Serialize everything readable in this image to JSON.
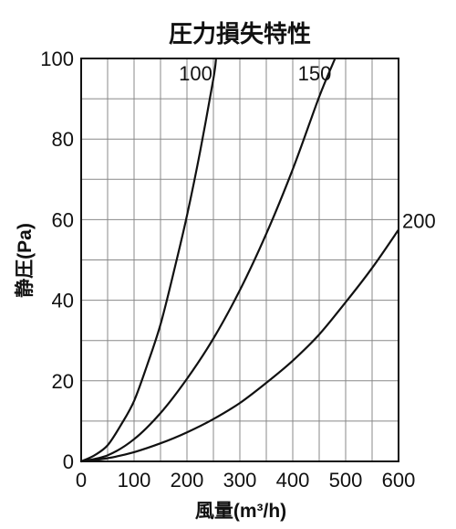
{
  "chart_data": {
    "type": "line",
    "title": "圧力損失特性",
    "xlabel": "風量(m³/h)",
    "ylabel": "静圧(Pa)",
    "xlim": [
      0,
      600
    ],
    "ylim": [
      0,
      100
    ],
    "x_ticks": [
      "0",
      "100",
      "200",
      "300",
      "400",
      "500",
      "600"
    ],
    "y_ticks": [
      "0",
      "20",
      "40",
      "60",
      "80",
      "100"
    ],
    "grid": true,
    "series": [
      {
        "name": "100",
        "x": [
          0,
          25,
          50,
          75,
          100,
          125,
          150,
          175,
          200,
          225,
          250,
          255
        ],
        "y": [
          0,
          1.5,
          4,
          9,
          15,
          24,
          34,
          47,
          61,
          77,
          95,
          100
        ]
      },
      {
        "name": "150",
        "x": [
          0,
          50,
          100,
          150,
          200,
          250,
          300,
          350,
          400,
          450,
          480
        ],
        "y": [
          0,
          1.5,
          5.5,
          12,
          20.5,
          30.5,
          42.5,
          56.5,
          72.5,
          90.5,
          100
        ]
      },
      {
        "name": "200",
        "x": [
          0,
          50,
          100,
          150,
          200,
          250,
          300,
          350,
          400,
          450,
          500,
          550,
          600
        ],
        "y": [
          0,
          0.8,
          2.3,
          4.5,
          7.2,
          10.5,
          14.5,
          19.5,
          25,
          31.5,
          39.5,
          48,
          57.5
        ]
      }
    ]
  }
}
